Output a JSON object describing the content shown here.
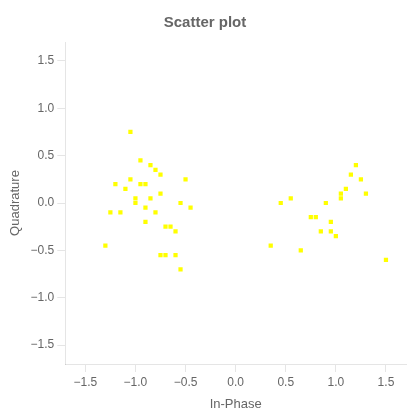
{
  "chart_data": {
    "type": "scatter",
    "title": "Scatter plot",
    "xlabel": "In-Phase",
    "ylabel": "Quadrature",
    "x": [
      -1.2,
      -1.05,
      -1.1,
      -0.95,
      -1.0,
      -0.85,
      -1.0,
      -0.9,
      -0.8,
      -0.75,
      -0.9,
      -0.7,
      -0.65,
      -0.6,
      -0.55,
      -0.75,
      -0.8,
      -0.85,
      -0.95,
      -1.05,
      -0.9,
      -1.15,
      -0.75,
      -0.6,
      -0.55,
      -0.7,
      -0.5,
      -0.45,
      -1.3,
      -1.25,
      0.45,
      0.55,
      0.65,
      0.75,
      0.85,
      0.9,
      0.95,
      1.0,
      1.05,
      1.1,
      1.15,
      1.2,
      1.25,
      0.95,
      1.05,
      0.8,
      1.3,
      1.5,
      0.35
    ],
    "values": [
      0.2,
      0.25,
      0.15,
      0.2,
      0.05,
      0.05,
      0.0,
      -0.05,
      -0.1,
      0.1,
      -0.2,
      -0.25,
      -0.25,
      -0.3,
      0.0,
      0.3,
      0.35,
      0.4,
      0.45,
      0.75,
      0.2,
      -0.1,
      -0.55,
      -0.55,
      -0.7,
      -0.55,
      0.25,
      -0.05,
      -0.45,
      -0.1,
      0.0,
      0.05,
      -0.5,
      -0.15,
      -0.3,
      0.0,
      -0.2,
      -0.35,
      0.1,
      0.15,
      0.3,
      0.4,
      0.25,
      -0.3,
      0.05,
      -0.15,
      0.1,
      -0.6,
      -0.45
    ],
    "color": "#ffff00",
    "marker": "square",
    "xlim": [
      -1.7,
      1.7
    ],
    "ylim": [
      -1.7,
      1.7
    ],
    "xticks": [
      {
        "value": -1.5,
        "label": "−1.5"
      },
      {
        "value": -1.0,
        "label": "−1.0"
      },
      {
        "value": -0.5,
        "label": "−0.5"
      },
      {
        "value": 0.0,
        "label": "0.0"
      },
      {
        "value": 0.5,
        "label": "0.5"
      },
      {
        "value": 1.0,
        "label": "1.0"
      },
      {
        "value": 1.5,
        "label": "1.5"
      }
    ],
    "yticks": [
      {
        "value": -1.5,
        "label": "−1.5"
      },
      {
        "value": -1.0,
        "label": "−1.0"
      },
      {
        "value": -0.5,
        "label": "−0.5"
      },
      {
        "value": 0.0,
        "label": "0.0"
      },
      {
        "value": 0.5,
        "label": "0.5"
      },
      {
        "value": 1.0,
        "label": "1.0"
      },
      {
        "value": 1.5,
        "label": "1.5"
      }
    ],
    "grid": false
  }
}
